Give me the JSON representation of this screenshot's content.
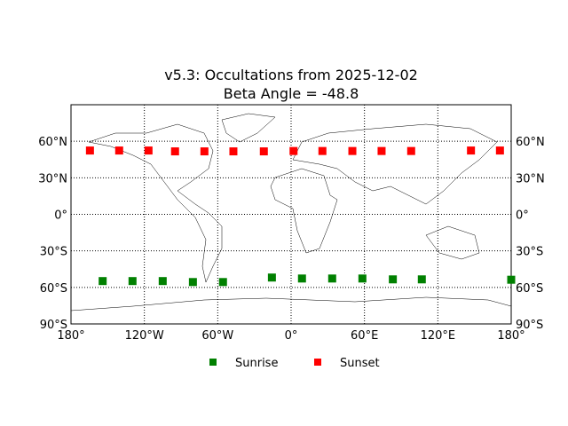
{
  "chart_data": {
    "type": "scatter",
    "title": "v5.3: Occultations from 2025-12-02",
    "subtitle": "Beta Angle = -48.8",
    "xlim": [
      -180,
      180
    ],
    "ylim": [
      -90,
      90
    ],
    "grid": true,
    "x_ticks": [
      {
        "v": -180,
        "label": "180°"
      },
      {
        "v": -120,
        "label": "120°W"
      },
      {
        "v": -60,
        "label": "60°W"
      },
      {
        "v": 0,
        "label": "0°"
      },
      {
        "v": 60,
        "label": "60°E"
      },
      {
        "v": 120,
        "label": "120°E"
      },
      {
        "v": 180,
        "label": "180°"
      }
    ],
    "y_ticks": [
      {
        "v": 60,
        "label": "60°N"
      },
      {
        "v": 30,
        "label": "30°N"
      },
      {
        "v": 0,
        "label": "0°"
      },
      {
        "v": -30,
        "label": "30°S"
      },
      {
        "v": -60,
        "label": "60°S"
      },
      {
        "v": -90,
        "label": "90°S"
      }
    ],
    "legend_position": "bottom-center",
    "series": [
      {
        "name": "Sunrise",
        "color": "#008000",
        "points": [
          [
            -154.1,
            -54.8
          ],
          [
            -129.7,
            -54.8
          ],
          [
            -105.0,
            -54.8
          ],
          [
            -80.3,
            -55.6
          ],
          [
            -55.7,
            -55.6
          ],
          [
            -15.7,
            -51.9
          ],
          [
            8.9,
            -52.7
          ],
          [
            33.6,
            -52.7
          ],
          [
            58.3,
            -52.7
          ],
          [
            83.2,
            -53.4
          ],
          [
            106.9,
            -53.4
          ],
          [
            180,
            -53.7
          ]
        ]
      },
      {
        "name": "Sunset",
        "color": "#ff0000",
        "points": [
          [
            -164.5,
            52.4
          ],
          [
            -140.6,
            52.4
          ],
          [
            -116.6,
            52.4
          ],
          [
            -94.9,
            51.7
          ],
          [
            -70.9,
            51.7
          ],
          [
            -47.2,
            51.7
          ],
          [
            -22.3,
            51.7
          ],
          [
            2.0,
            52.0
          ],
          [
            25.6,
            52.0
          ],
          [
            50.1,
            52.0
          ],
          [
            74.0,
            52.0
          ],
          [
            98.2,
            52.0
          ],
          [
            147.1,
            52.4
          ],
          [
            170.8,
            52.4
          ]
        ]
      }
    ]
  }
}
